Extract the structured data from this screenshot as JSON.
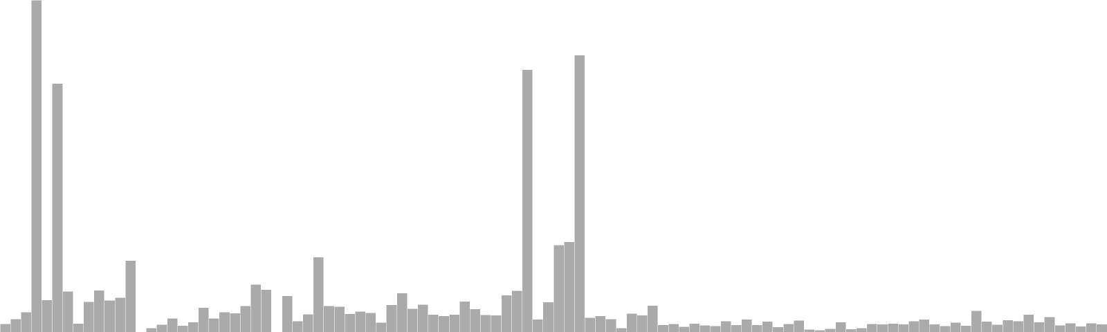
{
  "chart_data": {
    "type": "bar",
    "title": "",
    "xlabel": "",
    "ylabel": "",
    "ylim": [
      0,
      100
    ],
    "grid": false,
    "legend": "none",
    "bar_color": "#aaaaaa",
    "background_color": "#ffffff",
    "values": [
      2.4,
      3.9,
      6.0,
      100.0,
      9.6,
      74.8,
      12.2,
      2.6,
      9.1,
      12.6,
      9.5,
      10.4,
      21.5,
      0.0,
      1.2,
      2.2,
      4.1,
      1.9,
      3.0,
      7.3,
      4.1,
      6.0,
      5.7,
      7.9,
      14.3,
      12.8,
      0.0,
      10.9,
      3.3,
      5.4,
      22.6,
      7.9,
      7.7,
      5.5,
      6.2,
      5.8,
      2.9,
      8.2,
      11.7,
      7.0,
      8.3,
      5.3,
      4.8,
      5.3,
      9.2,
      6.9,
      5.2,
      5.1,
      11.1,
      12.4,
      79.0,
      3.8,
      9.0,
      26.2,
      27.1,
      83.4,
      4.3,
      4.8,
      3.9,
      1.2,
      5.6,
      5.1,
      8.0,
      2.1,
      2.4,
      1.6,
      2.6,
      2.0,
      1.8,
      3.3,
      2.1,
      3.8,
      2.1,
      3.2,
      1.5,
      2.5,
      3.5,
      0.8,
      0.6,
      1.0,
      3.0,
      0.9,
      1.2,
      2.4,
      2.3,
      2.6,
      2.3,
      3.3,
      3.8,
      2.3,
      1.8,
      2.9,
      1.9,
      6.4,
      3.2,
      2.2,
      3.6,
      3.3,
      5.3,
      3.0,
      4.5,
      2.0,
      2.7,
      1.7,
      2.7,
      2.3
    ]
  }
}
